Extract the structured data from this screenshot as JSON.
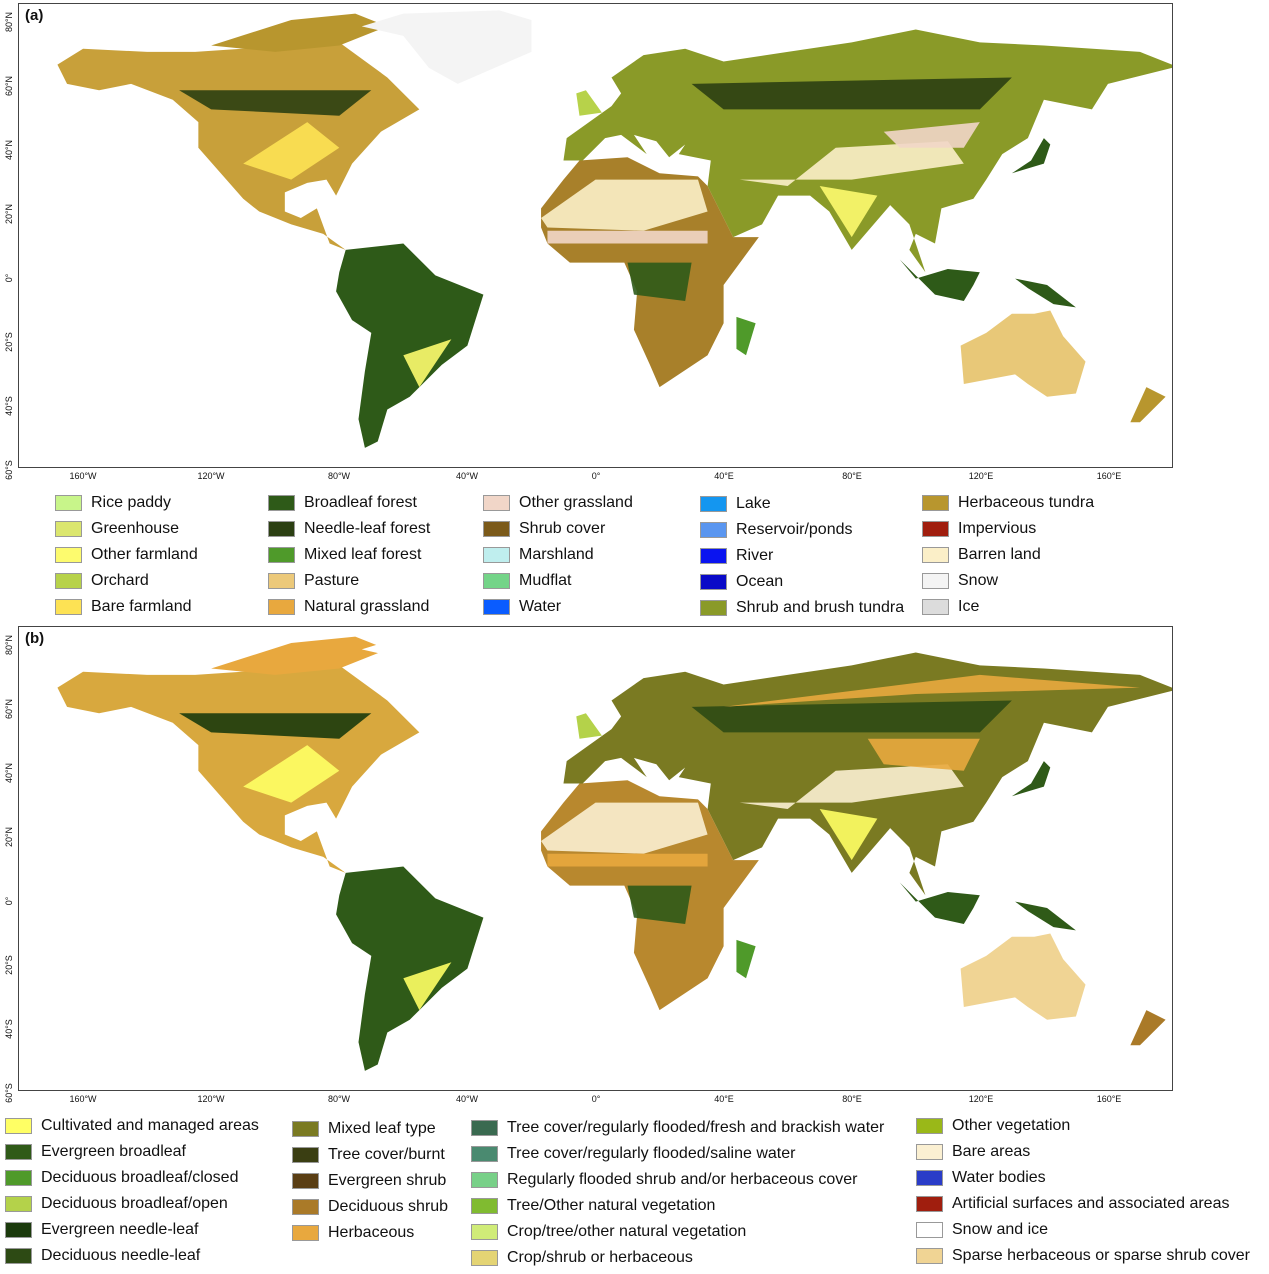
{
  "axes": {
    "lon_ticks": [
      "160°W",
      "120°W",
      "80°W",
      "40°W",
      "0°",
      "40°E",
      "80°E",
      "120°E",
      "160°E"
    ],
    "lat_ticks": [
      "80°N",
      "60°N",
      "40°N",
      "20°N",
      "0°",
      "20°S",
      "40°S",
      "60°S"
    ]
  },
  "panel_a": {
    "label": "(a)",
    "legend": [
      [
        {
          "label": "Rice paddy",
          "color": "#c8f58a"
        },
        {
          "label": "Greenhouse",
          "color": "#dbe66e"
        },
        {
          "label": "Other farmland",
          "color": "#fdfb6e"
        },
        {
          "label": "Orchard",
          "color": "#b7d24a"
        },
        {
          "label": "Bare farmland",
          "color": "#fde254"
        }
      ],
      [
        {
          "label": "Broadleaf forest",
          "color": "#2e5a18"
        },
        {
          "label": "Needle-leaf forest",
          "color": "#2b3f12"
        },
        {
          "label": "Mixed leaf forest",
          "color": "#4f9a2a"
        },
        {
          "label": "Pasture",
          "color": "#ecc97a"
        },
        {
          "label": "Natural grassland",
          "color": "#e8a83e"
        }
      ],
      [
        {
          "label": "Other grassland",
          "color": "#f1d6c8"
        },
        {
          "label": "Shrub cover",
          "color": "#7b5a1a"
        },
        {
          "label": "Marshland",
          "color": "#bfeeee"
        },
        {
          "label": "Mudflat",
          "color": "#74d488"
        },
        {
          "label": "Water",
          "color": "#0a5cff"
        }
      ],
      [
        {
          "label": "Lake",
          "color": "#1496f0"
        },
        {
          "label": "Reservoir/ponds",
          "color": "#5a96f0"
        },
        {
          "label": "River",
          "color": "#0a14f0"
        },
        {
          "label": "Ocean",
          "color": "#0a0ac8"
        },
        {
          "label": "Shrub and brush tundra",
          "color": "#8a9a28"
        }
      ],
      [
        {
          "label": "Herbaceous tundra",
          "color": "#b8962e"
        },
        {
          "label": "Impervious",
          "color": "#a01e0e"
        },
        {
          "label": "Barren land",
          "color": "#fbefc8"
        },
        {
          "label": "Snow",
          "color": "#f4f4f4"
        },
        {
          "label": "Ice",
          "color": "#dcdcdc"
        }
      ]
    ]
  },
  "panel_b": {
    "label": "(b)",
    "legend": [
      [
        {
          "label": "Cultivated and managed areas",
          "color": "#ffff64"
        },
        {
          "label": "Evergreen broadleaf",
          "color": "#2f5a18"
        },
        {
          "label": "Deciduous broadleaf/closed",
          "color": "#4f9a2a"
        },
        {
          "label": "Deciduous broadleaf/open",
          "color": "#b4d24a"
        },
        {
          "label": "Evergreen needle-leaf",
          "color": "#1b3a0c"
        },
        {
          "label": "Deciduous needle-leaf",
          "color": "#2d4a14"
        }
      ],
      [
        {
          "label": "Mixed leaf type",
          "color": "#7a7a22"
        },
        {
          "label": "Tree cover/burnt",
          "color": "#3a3e12"
        },
        {
          "label": "Evergreen shrub",
          "color": "#5a3e14"
        },
        {
          "label": "Deciduous shrub",
          "color": "#aa7a28"
        },
        {
          "label": "Herbaceous",
          "color": "#e8a83e"
        }
      ],
      [
        {
          "label": "Tree cover/regularly flooded/fresh and brackish water",
          "color": "#3a6a50"
        },
        {
          "label": "Tree cover/regularly flooded/saline water",
          "color": "#4a8a70"
        },
        {
          "label": "Regularly flooded shrub and/or herbaceous cover",
          "color": "#78d088"
        },
        {
          "label": "Tree/Other natural vegetation",
          "color": "#80bb30"
        },
        {
          "label": "Crop/tree/other natural vegetation",
          "color": "#d0ec78"
        },
        {
          "label": "Crop/shrub or herbaceous",
          "color": "#e4d474"
        }
      ],
      [
        {
          "label": "Other vegetation",
          "color": "#9ab818"
        },
        {
          "label": "Bare areas",
          "color": "#fbf0d2"
        },
        {
          "label": "Water bodies",
          "color": "#2a3cc8"
        },
        {
          "label": "Artificial surfaces and associated areas",
          "color": "#a01e0e"
        },
        {
          "label": "Snow and ice",
          "color": "#ffffff"
        },
        {
          "label": "Sparse herbaceous or sparse shrub cover",
          "color": "#f0d494"
        }
      ]
    ]
  }
}
